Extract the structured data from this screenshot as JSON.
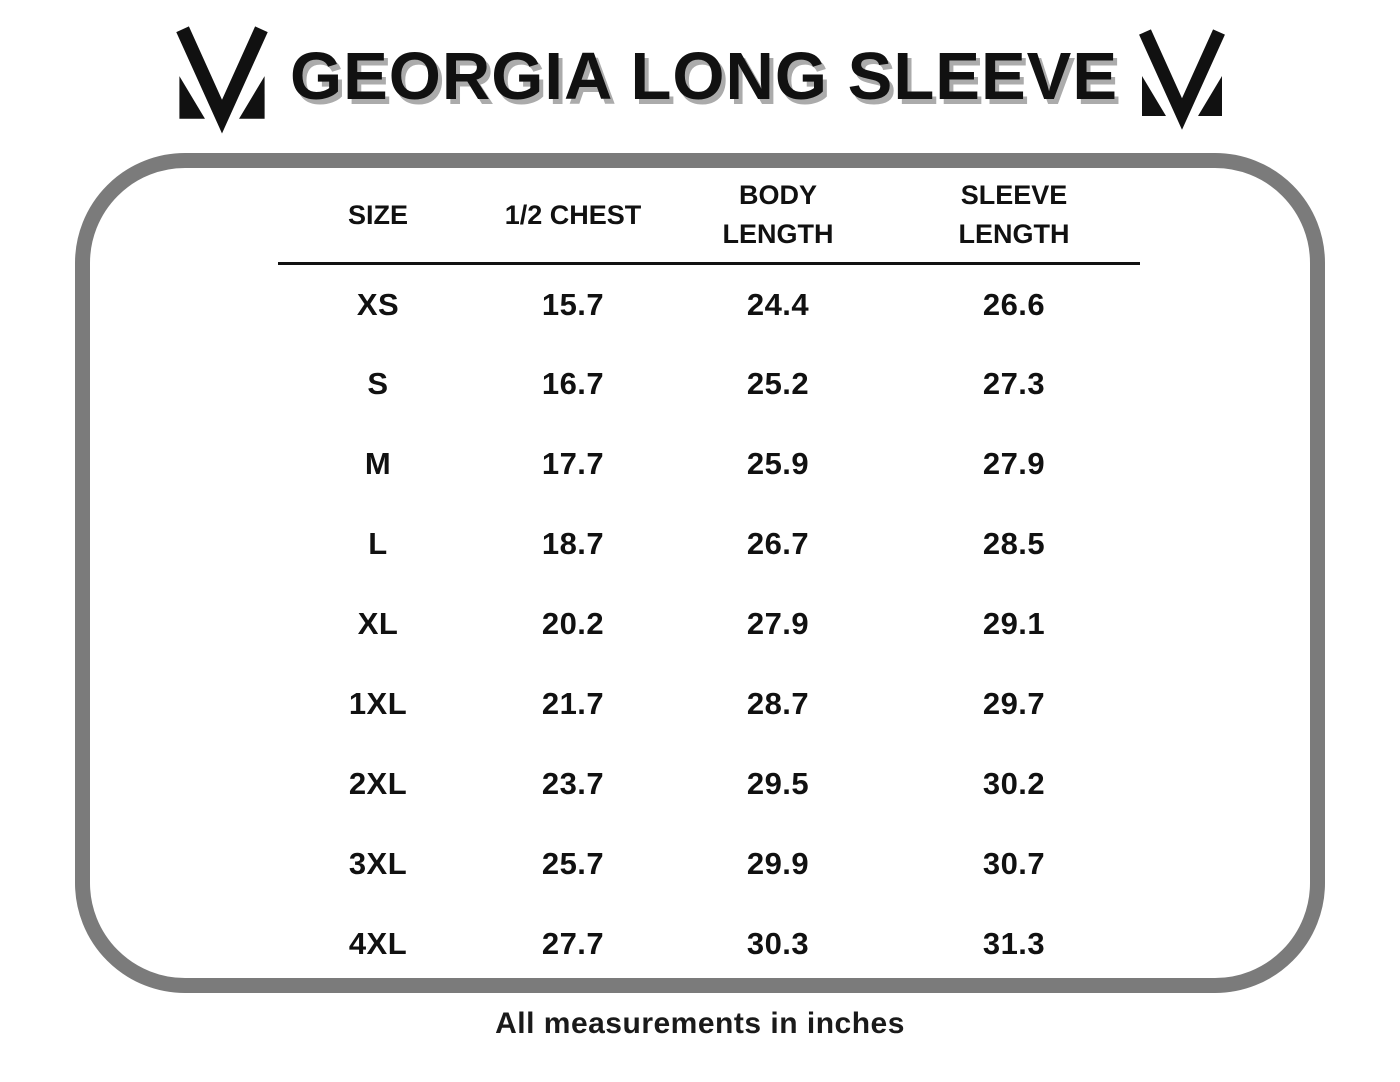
{
  "title": "GEORGIA LONG SLEEVE",
  "icons": {
    "brand_logo": "m-monogram"
  },
  "colors": {
    "panel_border": "#7b7b7b",
    "title_shadow": "#ababab",
    "text": "#111111"
  },
  "table": {
    "columns": [
      "SIZE",
      "1/2 CHEST",
      "BODY\nLENGTH",
      "SLEEVE\nLENGTH"
    ],
    "rows": [
      [
        "XS",
        "15.7",
        "24.4",
        "26.6"
      ],
      [
        "S",
        "16.7",
        "25.2",
        "27.3"
      ],
      [
        "M",
        "17.7",
        "25.9",
        "27.9"
      ],
      [
        "L",
        "18.7",
        "26.7",
        "28.5"
      ],
      [
        "XL",
        "20.2",
        "27.9",
        "29.1"
      ],
      [
        "1XL",
        "21.7",
        "28.7",
        "29.7"
      ],
      [
        "2XL",
        "23.7",
        "29.5",
        "30.2"
      ],
      [
        "3XL",
        "25.7",
        "29.9",
        "30.7"
      ],
      [
        "4XL",
        "27.7",
        "30.3",
        "31.3"
      ]
    ]
  },
  "footer_note": "All measurements in inches"
}
